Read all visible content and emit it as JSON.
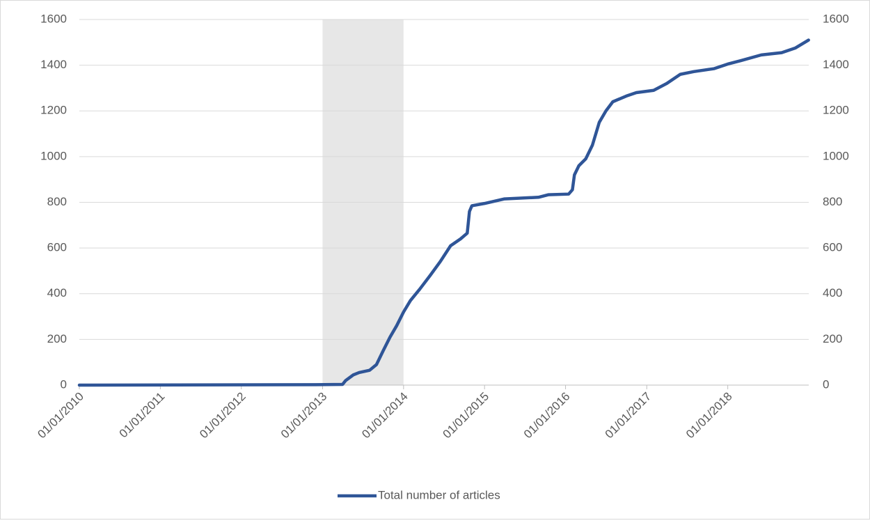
{
  "chart_data": {
    "type": "line",
    "x": [
      "2010-01-01",
      "2012-12-01",
      "2013-04-01",
      "2013-04-15",
      "2013-05-20",
      "2013-06-15",
      "2013-08-01",
      "2013-09-01",
      "2013-10-01",
      "2013-11-01",
      "2013-12-01",
      "2014-01-01",
      "2014-02-01",
      "2014-03-15",
      "2014-05-01",
      "2014-06-15",
      "2014-08-01",
      "2014-09-15",
      "2014-10-15",
      "2014-10-25",
      "2014-11-05",
      "2015-01-01",
      "2015-04-01",
      "2015-09-01",
      "2015-10-15",
      "2016-01-15",
      "2016-02-01",
      "2016-02-10",
      "2016-03-01",
      "2016-04-01",
      "2016-05-01",
      "2016-06-01",
      "2016-07-01",
      "2016-08-01",
      "2016-10-01",
      "2016-11-15",
      "2017-02-01",
      "2017-04-01",
      "2017-06-01",
      "2017-08-01",
      "2017-11-01",
      "2018-01-01",
      "2018-03-01",
      "2018-06-01",
      "2018-09-01",
      "2018-11-01",
      "2018-12-31"
    ],
    "series": [
      {
        "name": "Total number of articles",
        "color": "#2f5597",
        "axis": "y",
        "values": [
          0,
          2,
          3,
          20,
          45,
          55,
          65,
          90,
          150,
          210,
          260,
          320,
          370,
          420,
          480,
          540,
          610,
          640,
          665,
          760,
          785,
          795,
          815,
          822,
          833,
          836,
          855,
          920,
          960,
          990,
          1050,
          1150,
          1200,
          1240,
          1265,
          1280,
          1290,
          1320,
          1360,
          1372,
          1385,
          1405,
          1420,
          1445,
          1455,
          1475,
          1510
        ]
      }
    ],
    "xlim": [
      "2010-01-01",
      "2019-01-01"
    ],
    "xticks": [
      {
        "value": "2010-01-01",
        "label": "01/01/2010"
      },
      {
        "value": "2011-01-01",
        "label": "01/01/2011"
      },
      {
        "value": "2012-01-01",
        "label": "01/01/2012"
      },
      {
        "value": "2013-01-01",
        "label": "01/01/2013"
      },
      {
        "value": "2014-01-01",
        "label": "01/01/2014"
      },
      {
        "value": "2015-01-01",
        "label": "01/01/2015"
      },
      {
        "value": "2016-01-01",
        "label": "01/01/2016"
      },
      {
        "value": "2017-01-01",
        "label": "01/01/2017"
      },
      {
        "value": "2018-01-01",
        "label": "01/01/2018"
      }
    ],
    "ylim": [
      0,
      1600
    ],
    "yticks": [
      0,
      200,
      400,
      600,
      800,
      1000,
      1200,
      1400,
      1600
    ],
    "y2lim": [
      0,
      1600
    ],
    "y2ticks": [
      0,
      200,
      400,
      600,
      800,
      1000,
      1200,
      1400,
      1600
    ],
    "shaded_region": [
      "2013-01-01",
      "2014-01-01"
    ],
    "shaded_color": "#e7e7e7",
    "grid": true,
    "legend": "bottom"
  }
}
